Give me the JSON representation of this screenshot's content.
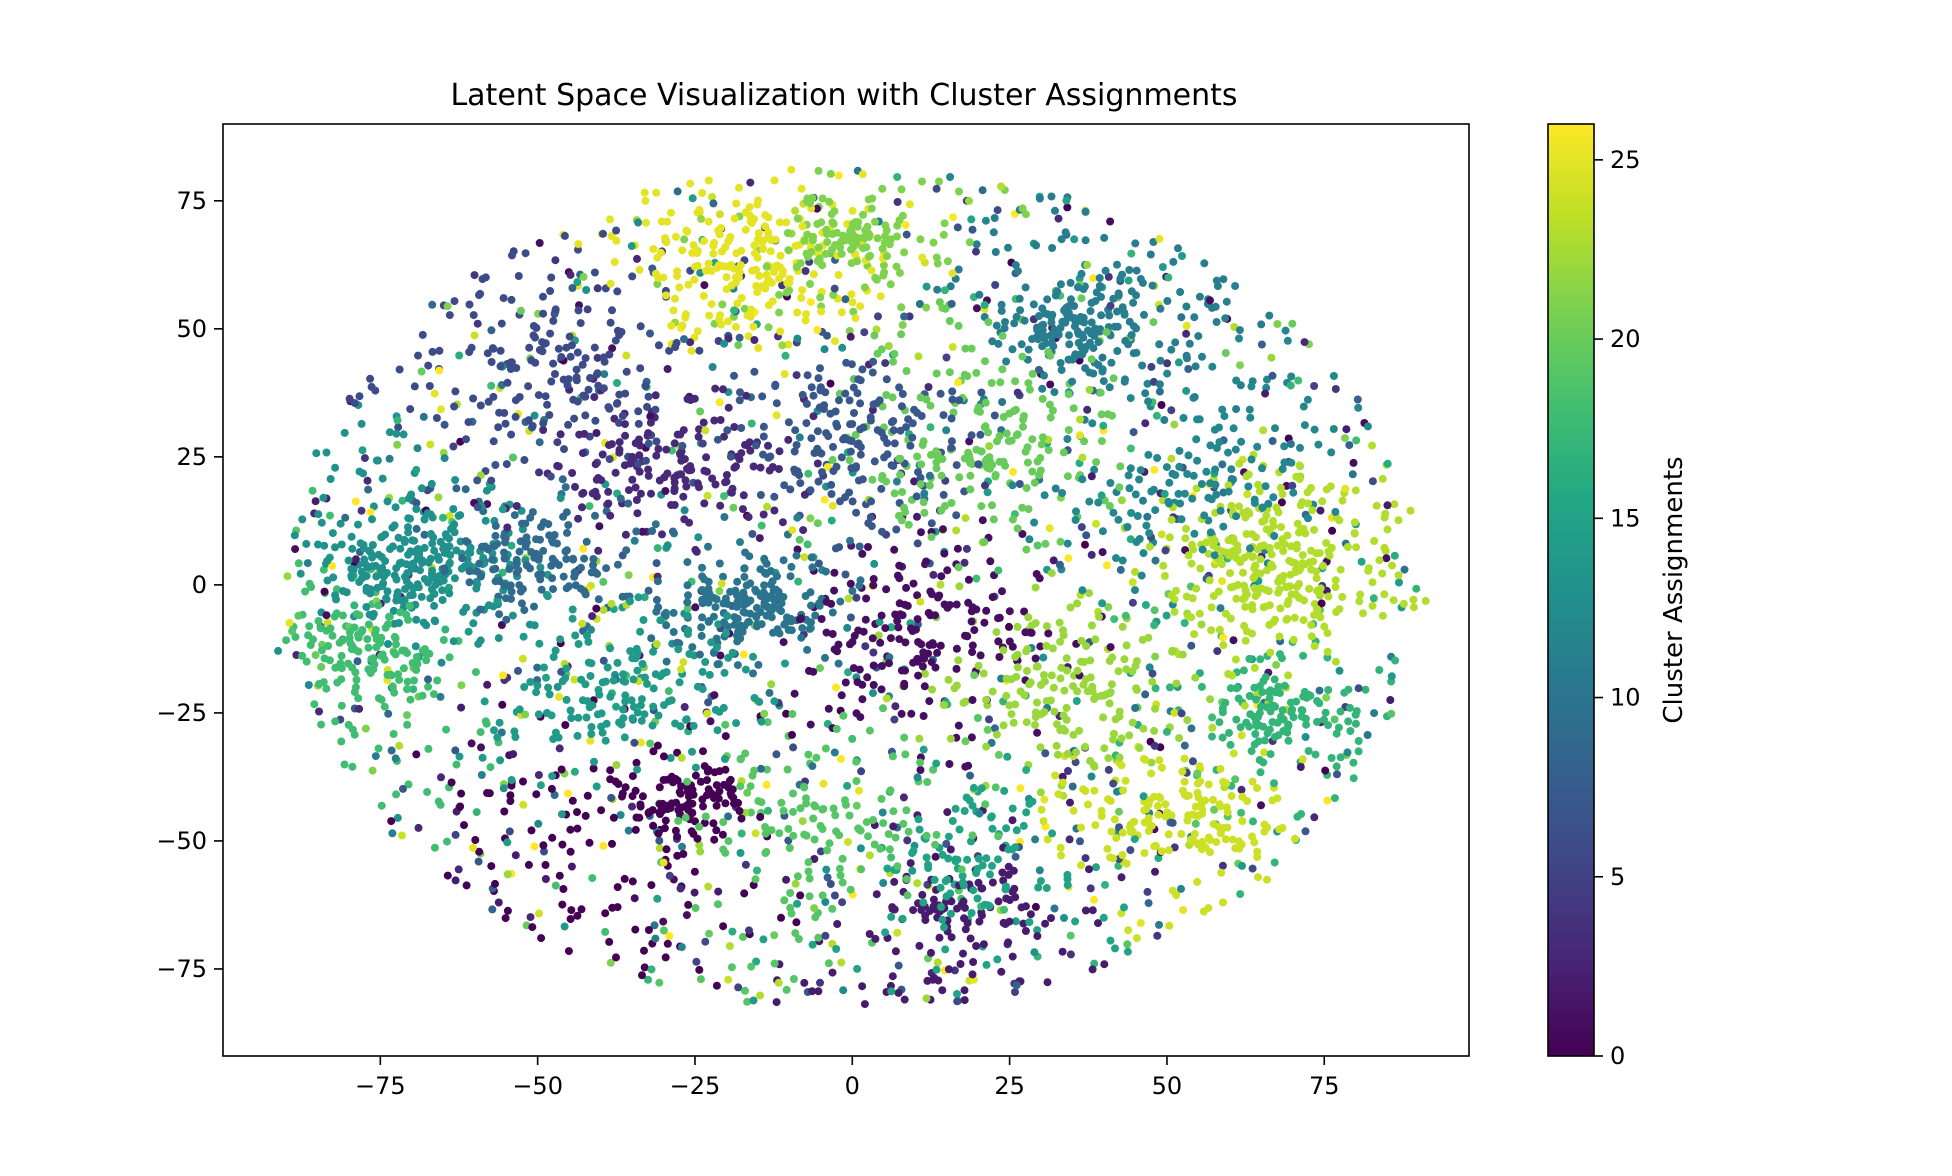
{
  "chart_data": {
    "type": "scatter",
    "title": "Latent Space Visualization with Cluster Assignments",
    "xlabel": "",
    "ylabel": "",
    "xlim": [
      -100,
      98
    ],
    "ylim": [
      -92,
      90
    ],
    "xticks": [
      -75,
      -50,
      -25,
      0,
      25,
      50,
      75
    ],
    "yticks": [
      -75,
      -50,
      -25,
      0,
      25,
      50,
      75
    ],
    "xtick_labels": [
      "−75",
      "−50",
      "−25",
      "0",
      "25",
      "50",
      "75"
    ],
    "ytick_labels": [
      "−75",
      "−50",
      "−25",
      "0",
      "25",
      "50",
      "75"
    ],
    "grid": false,
    "legend": "none",
    "colormap": "viridis",
    "colorbar": {
      "label": "Cluster Assignments",
      "range": [
        0,
        26
      ],
      "ticks": [
        0,
        5,
        10,
        15,
        20,
        25
      ],
      "tick_labels": [
        "0",
        "5",
        "10",
        "15",
        "20",
        "25"
      ]
    },
    "cluster_regions": [
      {
        "cluster": 13,
        "center": [
          -68,
          3
        ],
        "spread": [
          7,
          6
        ],
        "count": 220
      },
      {
        "cluster": 18,
        "center": [
          -78,
          -14
        ],
        "spread": [
          5,
          5
        ],
        "count": 100
      },
      {
        "cluster": 10,
        "center": [
          -16,
          -4
        ],
        "spread": [
          6,
          5
        ],
        "count": 150
      },
      {
        "cluster": 9,
        "center": [
          -50,
          4
        ],
        "spread": [
          7,
          5
        ],
        "count": 110
      },
      {
        "cluster": 23,
        "center": [
          67,
          4
        ],
        "spread": [
          8,
          9
        ],
        "count": 240
      },
      {
        "cluster": 17,
        "center": [
          67,
          -25
        ],
        "spread": [
          5,
          4
        ],
        "count": 90
      },
      {
        "cluster": 25,
        "center": [
          -15,
          63
        ],
        "spread": [
          8,
          6
        ],
        "count": 150
      },
      {
        "cluster": 21,
        "center": [
          -2,
          68
        ],
        "spread": [
          6,
          4
        ],
        "count": 90
      },
      {
        "cluster": 11,
        "center": [
          35,
          50
        ],
        "spread": [
          7,
          6
        ],
        "count": 150
      },
      {
        "cluster": 0,
        "center": [
          -27,
          -42
        ],
        "spread": [
          6,
          4
        ],
        "count": 110
      },
      {
        "cluster": 1,
        "center": [
          10,
          -10
        ],
        "spread": [
          10,
          6
        ],
        "count": 120
      },
      {
        "cluster": 24,
        "center": [
          52,
          -45
        ],
        "spread": [
          8,
          6
        ],
        "count": 110
      },
      {
        "cluster": 3,
        "center": [
          -30,
          22
        ],
        "spread": [
          10,
          6
        ],
        "count": 120
      },
      {
        "cluster": 20,
        "center": [
          20,
          30
        ],
        "spread": [
          10,
          10
        ],
        "count": 130
      },
      {
        "cluster": 22,
        "center": [
          35,
          -20
        ],
        "spread": [
          9,
          8
        ],
        "count": 110
      },
      {
        "cluster": 14,
        "center": [
          -35,
          -20
        ],
        "spread": [
          10,
          8
        ],
        "count": 110
      },
      {
        "cluster": 7,
        "center": [
          0,
          30
        ],
        "spread": [
          10,
          8
        ],
        "count": 120
      },
      {
        "cluster": 2,
        "center": [
          18,
          -63
        ],
        "spread": [
          6,
          5
        ],
        "count": 70
      },
      {
        "cluster": 15,
        "center": [
          20,
          -55
        ],
        "spread": [
          6,
          6
        ],
        "count": 70
      },
      {
        "cluster": 6,
        "center": [
          -45,
          40
        ],
        "spread": [
          8,
          8
        ],
        "count": 90
      },
      {
        "cluster": 19,
        "center": [
          -5,
          -45
        ],
        "spread": [
          12,
          8
        ],
        "count": 90
      },
      {
        "cluster": 12,
        "center": [
          55,
          20
        ],
        "spread": [
          10,
          8
        ],
        "count": 80
      }
    ],
    "background_scatter": {
      "count": 2600,
      "extent_x": [
        -90,
        90
      ],
      "extent_y": [
        -83,
        82
      ]
    }
  }
}
